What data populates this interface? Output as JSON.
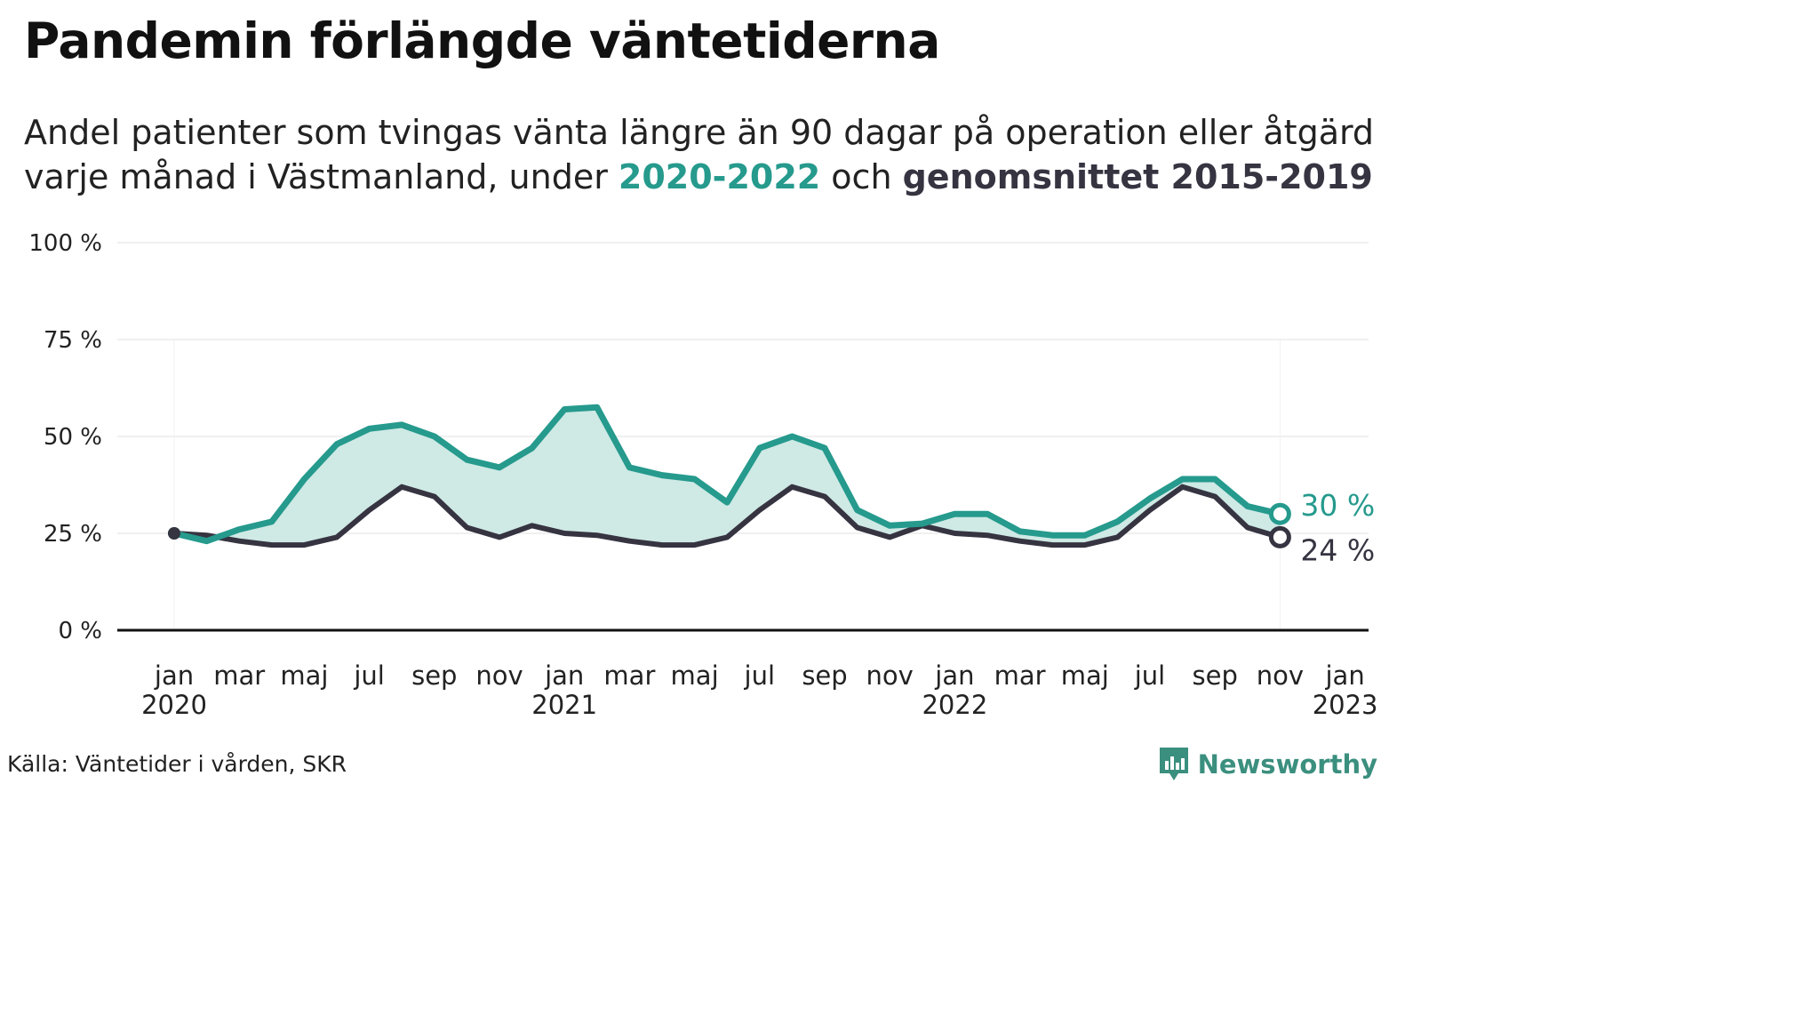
{
  "title": "Pandemin förlängde väntetiderna",
  "subtitle": {
    "line1": "Andel patienter som tvingas vänta längre än 90 dagar på operation eller åtgärd",
    "line2_prefix": "varje månad i Västmanland, under ",
    "highlight_current": "2020-2022",
    "connector": " och ",
    "highlight_average": "genomsnittet 2015-2019"
  },
  "source": "Källa: Väntetider i vården, SKR",
  "brand": "Newsworthy",
  "chart_data": {
    "type": "area",
    "title": "Pandemin förlängde väntetiderna",
    "y_ticks": [
      "0 %",
      "25 %",
      "50 %",
      "75 %",
      "100 %"
    ],
    "ylim": [
      0,
      100
    ],
    "grid": true,
    "x_ticks": [
      {
        "label": "jan",
        "year": "2020"
      },
      {
        "label": "mar",
        "year": ""
      },
      {
        "label": "maj",
        "year": ""
      },
      {
        "label": "jul",
        "year": ""
      },
      {
        "label": "sep",
        "year": ""
      },
      {
        "label": "nov",
        "year": ""
      },
      {
        "label": "jan",
        "year": "2021"
      },
      {
        "label": "mar",
        "year": ""
      },
      {
        "label": "maj",
        "year": ""
      },
      {
        "label": "jul",
        "year": ""
      },
      {
        "label": "sep",
        "year": ""
      },
      {
        "label": "nov",
        "year": ""
      },
      {
        "label": "jan",
        "year": "2022"
      },
      {
        "label": "mar",
        "year": ""
      },
      {
        "label": "maj",
        "year": ""
      },
      {
        "label": "jul",
        "year": ""
      },
      {
        "label": "sep",
        "year": ""
      },
      {
        "label": "nov",
        "year": ""
      },
      {
        "label": "jan",
        "year": "2023"
      }
    ],
    "x": [
      "2020-01",
      "2020-02",
      "2020-03",
      "2020-04",
      "2020-05",
      "2020-06",
      "2020-07",
      "2020-08",
      "2020-09",
      "2020-10",
      "2020-11",
      "2020-12",
      "2021-01",
      "2021-02",
      "2021-03",
      "2021-04",
      "2021-05",
      "2021-06",
      "2021-07",
      "2021-08",
      "2021-09",
      "2021-10",
      "2021-11",
      "2021-12",
      "2022-01",
      "2022-02",
      "2022-03",
      "2022-04",
      "2022-05",
      "2022-06",
      "2022-07",
      "2022-08",
      "2022-09",
      "2022-10",
      "2022-11"
    ],
    "series": [
      {
        "name": "2020-2022",
        "color": "#259a8d",
        "end_label": "30 %",
        "values": [
          25,
          23,
          26,
          28,
          39,
          48,
          52,
          53,
          50,
          44,
          42,
          47,
          57,
          57.5,
          42,
          40,
          39,
          33,
          47,
          50,
          47,
          31,
          27,
          27.5,
          30,
          30,
          25.5,
          24.5,
          24.5,
          28,
          34,
          39,
          39,
          32,
          30
        ]
      },
      {
        "name": "genomsnittet 2015-2019",
        "color": "#363441",
        "end_label": "24 %",
        "values": [
          25,
          24.5,
          23,
          22,
          22,
          24,
          31,
          37,
          34.5,
          26.5,
          24,
          27,
          25,
          24.5,
          23,
          22,
          22,
          24,
          31,
          37,
          34.5,
          26.5,
          24,
          27,
          25,
          24.5,
          23,
          22,
          22,
          24,
          31,
          37,
          34.5,
          26.5,
          24
        ]
      }
    ],
    "fill_color": "#cfe9e5"
  }
}
